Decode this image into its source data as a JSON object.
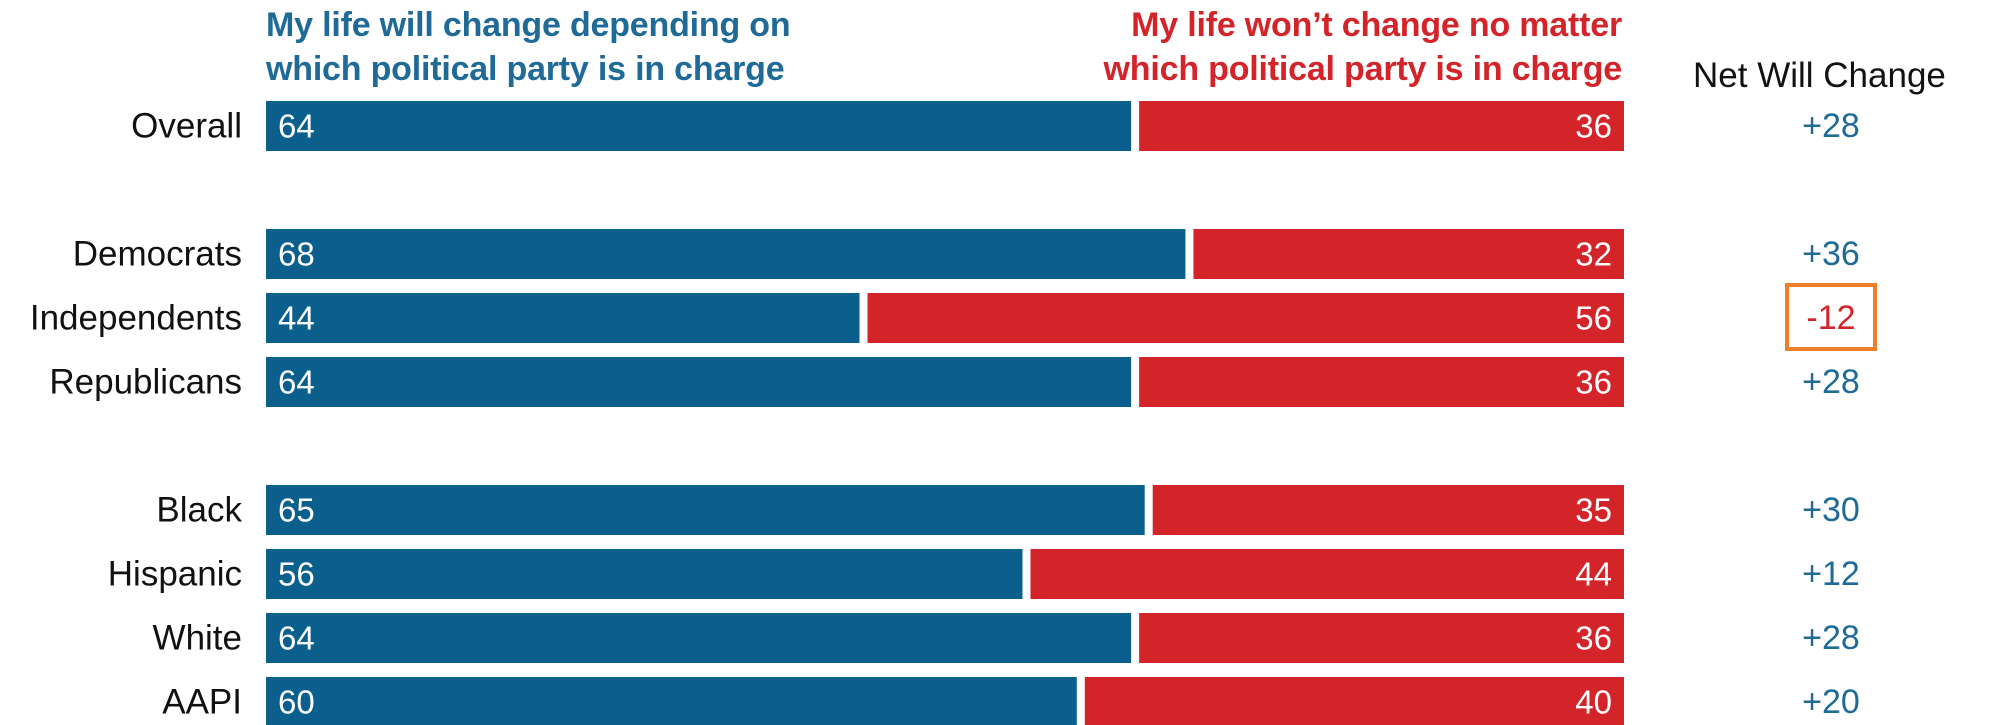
{
  "header": {
    "left_line1": "My life will change depending on",
    "left_line2": "which political party is in charge",
    "right_line1": "My life won’t change no matter",
    "right_line2": "which political party is in charge",
    "net_label": "Net Will Change"
  },
  "colors": {
    "will_change": "#0a5f8d",
    "wont_change": "#d3242a",
    "net_positive_text": "#1f6a96",
    "net_negative_text": "#d3242a",
    "highlight_box": "#ef7f2c",
    "label_text": "#111111"
  },
  "chart_data": {
    "type": "bar",
    "orientation": "horizontal",
    "stacked": true,
    "percent_scale": [
      0,
      100
    ],
    "categories": [
      "Overall",
      "Democrats",
      "Independents",
      "Republicans",
      "Black",
      "Hispanic",
      "White",
      "AAPI"
    ],
    "groups": [
      [
        "Overall"
      ],
      [
        "Democrats",
        "Independents",
        "Republicans"
      ],
      [
        "Black",
        "Hispanic",
        "White",
        "AAPI"
      ]
    ],
    "series": [
      {
        "name": "My life will change depending on which political party is in charge",
        "values": [
          64,
          68,
          44,
          64,
          65,
          56,
          64,
          60
        ]
      },
      {
        "name": "My life won’t change no matter which political party is in charge",
        "values": [
          36,
          32,
          56,
          36,
          35,
          44,
          36,
          40
        ]
      }
    ],
    "net_will_change": {
      "label": "Net Will Change",
      "values": [
        "+28",
        "+36",
        "-12",
        "+28",
        "+30",
        "+12",
        "+28",
        "+20"
      ],
      "highlighted": [
        "Independents"
      ]
    }
  }
}
